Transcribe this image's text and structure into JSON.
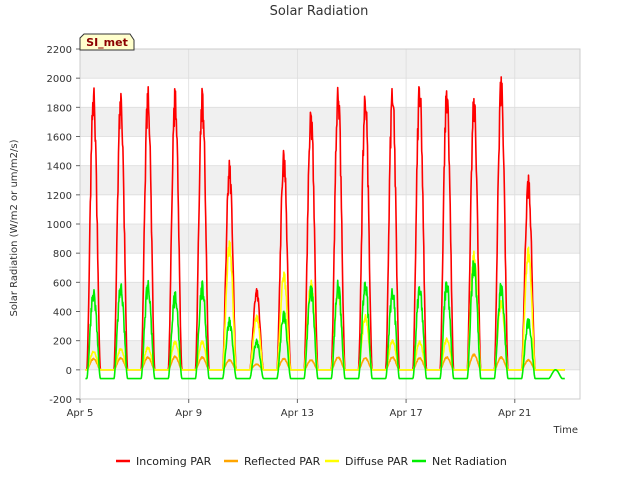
{
  "chart_data": {
    "type": "line",
    "title": "Solar Radiation",
    "xlabel": "Time",
    "ylabel": "Solar Radiation (W/m2 or um/m2/s)",
    "badge": "SI_met",
    "xlim": [
      5,
      23.4
    ],
    "ylim": [
      -200,
      2200
    ],
    "yticks": [
      -200,
      0,
      200,
      400,
      600,
      800,
      1000,
      1200,
      1400,
      1600,
      1800,
      2000,
      2200
    ],
    "xticks": [
      {
        "value": 5,
        "label": "Apr 5"
      },
      {
        "value": 9,
        "label": "Apr 9"
      },
      {
        "value": 13,
        "label": "Apr 13"
      },
      {
        "value": 17,
        "label": "Apr 17"
      },
      {
        "value": 21,
        "label": "Apr 21"
      }
    ],
    "grid": true,
    "legend_position": "bottom",
    "days": [
      5,
      6,
      7,
      8,
      9,
      10,
      11,
      12,
      13,
      14,
      15,
      16,
      17,
      18,
      19,
      20,
      21,
      22
    ],
    "series": [
      {
        "name": "Incoming PAR",
        "color": "#ff0000",
        "values": [
          1960,
          1930,
          1950,
          1950,
          1940,
          1440,
          560,
          1510,
          1820,
          1970,
          1930,
          1980,
          2000,
          1980,
          1910,
          2040,
          1340,
          0
        ]
      },
      {
        "name": "Reflected PAR",
        "color": "#ffa500",
        "values": [
          80,
          85,
          90,
          95,
          90,
          70,
          40,
          80,
          70,
          90,
          85,
          90,
          85,
          90,
          110,
          90,
          70,
          0
        ]
      },
      {
        "name": "Diffuse PAR",
        "color": "#ffff00",
        "values": [
          130,
          150,
          160,
          200,
          200,
          890,
          380,
          680,
          620,
          560,
          380,
          210,
          200,
          220,
          820,
          480,
          850,
          0
        ]
      },
      {
        "name": "Net Radiation",
        "color": "#00ee00",
        "values": [
          570,
          610,
          620,
          550,
          610,
          360,
          210,
          410,
          600,
          620,
          630,
          570,
          600,
          640,
          780,
          610,
          360,
          0
        ]
      }
    ]
  }
}
